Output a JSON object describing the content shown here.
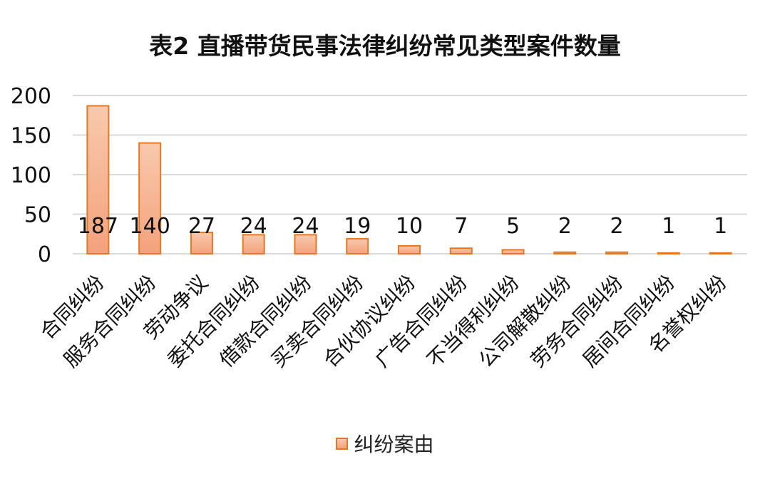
{
  "chart_data": {
    "type": "bar",
    "title": "表2 直播带货民事法律纠纷常见类型案件数量",
    "categories": [
      "合同纠纷",
      "服务合同纠纷",
      "劳动争议",
      "委托合同纠纷",
      "借款合同纠纷",
      "买卖合同纠纷",
      "合伙协议纠纷",
      "广告合同纠纷",
      "不当得利纠纷",
      "公司解散纠纷",
      "劳务合同纠纷",
      "居间合同纠纷",
      "名誉权纠纷"
    ],
    "series": [
      {
        "name": "纠纷案由",
        "values": [
          187,
          140,
          27,
          24,
          24,
          19,
          10,
          7,
          5,
          2,
          2,
          1,
          1
        ]
      }
    ],
    "ylim": [
      0,
      200
    ],
    "yticks": [
      0,
      50,
      100,
      150,
      200
    ],
    "grid": true,
    "legend": "bottom",
    "colors": {
      "fill_top": "#f9c9ad",
      "fill_bottom": "#f3a27c",
      "stroke": "#e87722",
      "grid": "#d9d9d9"
    }
  }
}
